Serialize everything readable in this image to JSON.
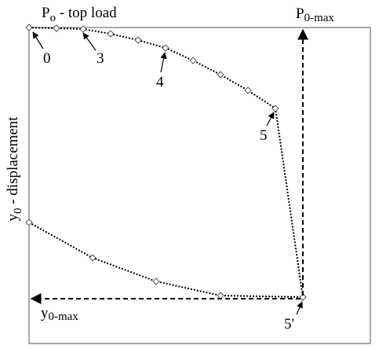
{
  "top_load": {
    "base": "P",
    "sub": "o",
    "rest": " - top load"
  },
  "p_max": {
    "base": "P",
    "sub": "0-max"
  },
  "displacement": {
    "base": "y",
    "sub": "0",
    "rest": " - displacement"
  },
  "y_max": {
    "base": "y",
    "sub": "0-max"
  },
  "point_labels": [
    "0",
    "3",
    "4",
    "5",
    "5'"
  ]
}
